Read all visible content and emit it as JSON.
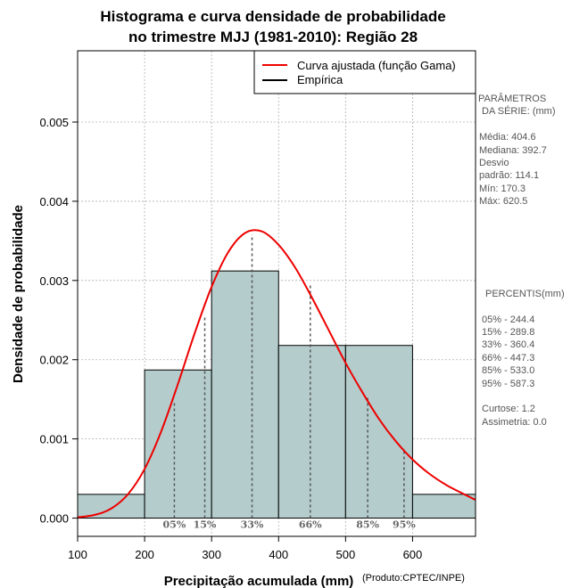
{
  "chart_data": {
    "type": "bar",
    "title_lines": [
      "Histograma e curva densidade de probabilidade",
      "no trimestre MJJ (1981-2010): Região 28"
    ],
    "xlabel": "Precipitação acumulada (mm)",
    "ylabel": "Densidade de probabilidade",
    "xlim": [
      100,
      694
    ],
    "ylim": [
      -0.00023,
      0.0059
    ],
    "x_ticks": [
      100,
      200,
      300,
      400,
      500,
      600
    ],
    "y_ticks": [
      0.0,
      0.001,
      0.002,
      0.003,
      0.004,
      0.005
    ],
    "y_tick_labels": [
      "0.000",
      "0.001",
      "0.002",
      "0.003",
      "0.004",
      "0.005"
    ],
    "grid": true,
    "histogram": {
      "name": "Empírica",
      "bins": [
        {
          "start": 100,
          "end": 200,
          "density": 0.0003
        },
        {
          "start": 200,
          "end": 300,
          "density": 0.00187
        },
        {
          "start": 300,
          "end": 400,
          "density": 0.00312
        },
        {
          "start": 400,
          "end": 500,
          "density": 0.00218
        },
        {
          "start": 500,
          "end": 600,
          "density": 0.00218
        },
        {
          "start": 600,
          "end": 700,
          "density": 0.0003
        }
      ],
      "fill_color": "#b4cccc",
      "edge_color": "#000000"
    },
    "fitted_curve": {
      "name": "Curva ajustada (função Gama)",
      "color": "#ee0000",
      "x": [
        100,
        125,
        150,
        175,
        200,
        225,
        250,
        275,
        300,
        325,
        350,
        375,
        400,
        425,
        450,
        475,
        500,
        525,
        550,
        575,
        600,
        625,
        650,
        675,
        694
      ],
      "y": [
        1e-05,
        4e-05,
        0.00012,
        0.0003,
        0.00062,
        0.0011,
        0.0017,
        0.00234,
        0.00292,
        0.00336,
        0.0036,
        0.00362,
        0.00345,
        0.00316,
        0.00278,
        0.00237,
        0.00196,
        0.00159,
        0.00125,
        0.00097,
        0.00074,
        0.00056,
        0.00042,
        0.00031,
        0.00023
      ]
    },
    "percentile_markers": [
      {
        "label": "05%",
        "x": 244.4,
        "y": 0.00147
      },
      {
        "label": "15%",
        "x": 289.8,
        "y": 0.00255
      },
      {
        "label": "33%",
        "x": 360.4,
        "y": 0.00358
      },
      {
        "label": "66%",
        "x": 447.3,
        "y": 0.00297
      },
      {
        "label": "85%",
        "x": 533.0,
        "y": 0.00152
      },
      {
        "label": "95%",
        "x": 587.3,
        "y": 0.00088
      }
    ],
    "legend": {
      "position": "top-right",
      "entries": [
        {
          "label": "Curva ajustada (função Gama)",
          "color": "#ee0000"
        },
        {
          "label": "Empírica",
          "color": "#000000"
        }
      ]
    }
  },
  "side_panel": {
    "params_title": [
      "PARÂMETROS",
      "DA SÉRIE: (mm)"
    ],
    "params": [
      "Média:  404.6",
      "Mediana:  392.7",
      "Desvio",
      "padrão:  114.1",
      "Mín:  170.3",
      "Máx:  620.5"
    ],
    "percentis_title": "PERCENTIS(mm)",
    "percentis": [
      "05% -  244.4",
      "15% -  289.8",
      "33% -  360.4",
      "66% -  447.3",
      "85% -  533.0",
      "95% -  587.3"
    ],
    "extra": [
      "Curtose:  1.2",
      "Assimetria:  0.0"
    ]
  },
  "credit": "(Produto:CPTEC/INPE)"
}
